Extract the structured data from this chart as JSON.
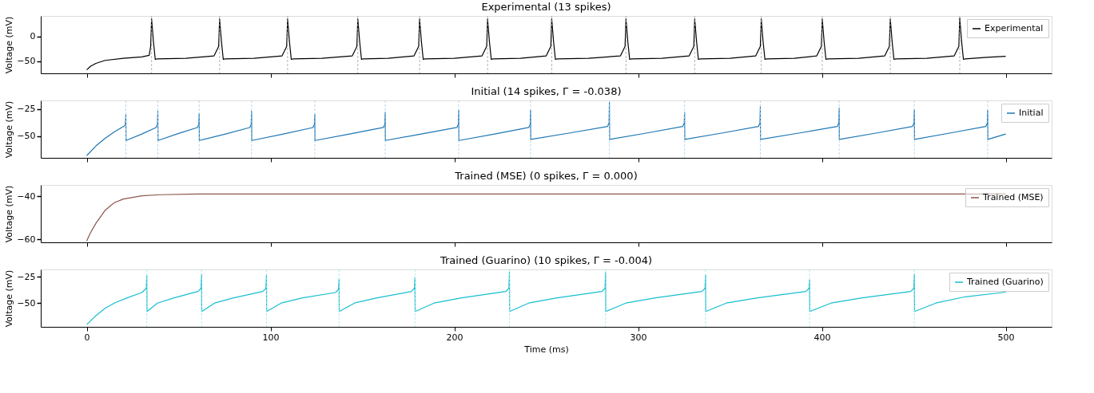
{
  "chart_data": [
    {
      "type": "line",
      "title": "Experimental (13 spikes)",
      "ylabel": "Voltage (mV)",
      "xlim": [
        -25,
        525
      ],
      "xticks": [
        0,
        100,
        200,
        300,
        400,
        500
      ],
      "ylim": [
        -74,
        41
      ],
      "yticks": [
        0,
        -50
      ],
      "tick_labels": "y",
      "legend": "top right",
      "grid": false,
      "line_style": "solid",
      "marker": "none",
      "series": [
        {
          "name": "Experimental",
          "color": "#000000",
          "x": [
            0,
            2,
            5,
            10,
            20,
            30,
            34,
            34.8,
            35.3,
            36.3,
            37.3,
            38.3,
            54,
            69.3,
            71.8,
            72.3,
            73.3,
            74.3,
            75.3,
            91,
            106.3,
            108.8,
            109.3,
            110.3,
            111.3,
            112.3,
            128,
            144.5,
            147,
            147.5,
            148.5,
            149.5,
            150.5,
            164,
            178.1,
            180.6,
            181.1,
            182.1,
            183.1,
            184.1,
            200,
            215.1,
            217.6,
            218.1,
            219.1,
            220.1,
            221.1,
            236,
            250,
            252.5,
            253,
            254,
            255,
            256,
            273,
            290.4,
            292.9,
            293.4,
            294.4,
            295.4,
            296.4,
            313,
            327.8,
            330.3,
            330.8,
            331.8,
            332.8,
            333.8,
            350,
            364,
            366.5,
            367,
            368,
            369,
            370,
            385,
            397.2,
            399.7,
            400.2,
            401.2,
            402.2,
            403.2,
            420,
            434.2,
            436.7,
            437.2,
            438.2,
            439.2,
            440.2,
            457,
            472,
            474.5,
            475,
            476,
            477,
            478,
            490,
            500
          ],
          "values": [
            -67,
            -60,
            -54,
            -48,
            -44,
            -41,
            -38,
            -20,
            35,
            -10,
            -46,
            -45,
            -44,
            -39,
            -20,
            35,
            -10,
            -46,
            -45,
            -44,
            -39,
            -20,
            35,
            -10,
            -46,
            -45,
            -44,
            -39,
            -20,
            35,
            -10,
            -46,
            -45,
            -44,
            -39,
            -20,
            35,
            -10,
            -46,
            -45,
            -44,
            -39,
            -20,
            35,
            -10,
            -46,
            -45,
            -44,
            -39,
            -20,
            35,
            -10,
            -46,
            -45,
            -44,
            -39,
            -20,
            35,
            -10,
            -46,
            -45,
            -44,
            -39,
            -20,
            35,
            -10,
            -46,
            -45,
            -44,
            -39,
            -20,
            35,
            -10,
            -46,
            -45,
            -44,
            -39,
            -20,
            35,
            -10,
            -46,
            -45,
            -44,
            -39,
            -20,
            35,
            -10,
            -46,
            -45,
            -44,
            -39,
            -20,
            37,
            -10,
            -46,
            -45,
            -42,
            -40
          ]
        }
      ],
      "ref_lines": [
        {
          "axis": "x",
          "value": 35.3,
          "color": "#9e9e9e",
          "line_style": "dashed"
        },
        {
          "axis": "x",
          "value": 72.3,
          "color": "#9e9e9e",
          "line_style": "dashed"
        },
        {
          "axis": "x",
          "value": 109.3,
          "color": "#9e9e9e",
          "line_style": "dashed"
        },
        {
          "axis": "x",
          "value": 147.5,
          "color": "#9e9e9e",
          "line_style": "dashed"
        },
        {
          "axis": "x",
          "value": 181.1,
          "color": "#9e9e9e",
          "line_style": "dashed"
        },
        {
          "axis": "x",
          "value": 218.1,
          "color": "#9e9e9e",
          "line_style": "dashed"
        },
        {
          "axis": "x",
          "value": 253,
          "color": "#9e9e9e",
          "line_style": "dashed"
        },
        {
          "axis": "x",
          "value": 293.4,
          "color": "#9e9e9e",
          "line_style": "dashed"
        },
        {
          "axis": "x",
          "value": 330.8,
          "color": "#9e9e9e",
          "line_style": "dashed"
        },
        {
          "axis": "x",
          "value": 367,
          "color": "#9e9e9e",
          "line_style": "dashed"
        },
        {
          "axis": "x",
          "value": 400.2,
          "color": "#9e9e9e",
          "line_style": "dashed"
        },
        {
          "axis": "x",
          "value": 437.2,
          "color": "#9e9e9e",
          "line_style": "dashed"
        },
        {
          "axis": "x",
          "value": 475,
          "color": "#9e9e9e",
          "line_style": "dashed"
        }
      ]
    },
    {
      "type": "line",
      "title": "Initial (14 spikes, Γ = -0.038)",
      "ylabel": "Voltage (mV)",
      "xlim": [
        -25,
        525
      ],
      "xticks": [
        0,
        100,
        200,
        300,
        400,
        500
      ],
      "ylim": [
        -70,
        -17
      ],
      "yticks": [
        -25,
        -50
      ],
      "tick_labels": "y",
      "legend": "top right",
      "grid": false,
      "line_style": "solid",
      "marker": "none",
      "series": [
        {
          "name": "Initial",
          "color": "#1f77b4",
          "x": [
            0,
            5,
            10,
            15,
            19,
            21,
            21.3,
            21.4,
            30,
            37.7,
            38.5,
            38.7,
            38.8,
            50,
            60.2,
            61,
            61.2,
            61.3,
            75.5,
            88.7,
            89.5,
            89.7,
            89.8,
            107,
            123.1,
            123.9,
            124.1,
            124.2,
            143,
            161.4,
            162.2,
            162.4,
            162.5,
            182,
            201.4,
            202.2,
            202.4,
            202.5,
            222,
            240.5,
            241.3,
            241.5,
            241.6,
            263,
            283.4,
            284.2,
            284.4,
            284.5,
            305,
            324.3,
            325.1,
            325.3,
            325.4,
            346,
            365.5,
            366.3,
            366.5,
            366.6,
            388,
            408.4,
            409.2,
            409.4,
            409.5,
            430,
            449.3,
            450.1,
            450.3,
            450.4,
            470,
            489.2,
            490,
            490.2,
            490.3,
            500
          ],
          "values": [
            -68,
            -59,
            -52,
            -46,
            -42,
            -40,
            -30,
            -54,
            -48,
            -42,
            -39,
            -27,
            -54,
            -47.5,
            -42,
            -39,
            -29,
            -54,
            -48,
            -42,
            -39,
            -27,
            -54,
            -48,
            -42,
            -39,
            -30,
            -54,
            -48,
            -42,
            -39,
            -28,
            -54,
            -48,
            -42,
            -39,
            -26,
            -54,
            -48,
            -42,
            -39,
            -26,
            -53,
            -47,
            -41,
            -38,
            -18.5,
            -53,
            -47,
            -41,
            -38,
            -28,
            -53,
            -47,
            -41,
            -38,
            -23,
            -53,
            -47,
            -41,
            -38,
            -24,
            -53,
            -47,
            -41,
            -38,
            -25.5,
            -53,
            -47,
            -41,
            -38,
            -26,
            -53,
            -48
          ]
        }
      ],
      "ref_lines": [
        {
          "axis": "x",
          "value": 21.3,
          "color": "#a9cbe6",
          "line_style": "dashed"
        },
        {
          "axis": "x",
          "value": 38.7,
          "color": "#a9cbe6",
          "line_style": "dashed"
        },
        {
          "axis": "x",
          "value": 61.2,
          "color": "#a9cbe6",
          "line_style": "dashed"
        },
        {
          "axis": "x",
          "value": 89.7,
          "color": "#a9cbe6",
          "line_style": "dashed"
        },
        {
          "axis": "x",
          "value": 124.1,
          "color": "#a9cbe6",
          "line_style": "dashed"
        },
        {
          "axis": "x",
          "value": 162.4,
          "color": "#a9cbe6",
          "line_style": "dashed"
        },
        {
          "axis": "x",
          "value": 202.4,
          "color": "#a9cbe6",
          "line_style": "dashed"
        },
        {
          "axis": "x",
          "value": 241.5,
          "color": "#a9cbe6",
          "line_style": "dashed"
        },
        {
          "axis": "x",
          "value": 284.4,
          "color": "#a9cbe6",
          "line_style": "dashed"
        },
        {
          "axis": "x",
          "value": 325.3,
          "color": "#a9cbe6",
          "line_style": "dashed"
        },
        {
          "axis": "x",
          "value": 366.5,
          "color": "#a9cbe6",
          "line_style": "dashed"
        },
        {
          "axis": "x",
          "value": 409.4,
          "color": "#a9cbe6",
          "line_style": "dashed"
        },
        {
          "axis": "x",
          "value": 450.3,
          "color": "#a9cbe6",
          "line_style": "dashed"
        },
        {
          "axis": "x",
          "value": 490.2,
          "color": "#a9cbe6",
          "line_style": "dashed"
        }
      ]
    },
    {
      "type": "line",
      "title": "Trained (MSE) (0 spikes, Γ = 0.000)",
      "ylabel": "Voltage (mV)",
      "xlim": [
        -25,
        525
      ],
      "xticks": [
        0,
        100,
        200,
        300,
        400,
        500
      ],
      "ylim": [
        -61.3,
        -34.8
      ],
      "yticks": [
        -40,
        -60
      ],
      "tick_labels": "y",
      "legend": "top right",
      "grid": false,
      "line_style": "solid",
      "marker": "none",
      "series": [
        {
          "name": "Trained (MSE)",
          "color": "#8c564b",
          "x": [
            0,
            2,
            5,
            10,
            15,
            20,
            30,
            40,
            60,
            100,
            500
          ],
          "values": [
            -60.7,
            -57,
            -52.5,
            -46.5,
            -43,
            -41.3,
            -39.8,
            -39.3,
            -39,
            -39,
            -39
          ]
        }
      ]
    },
    {
      "type": "line",
      "title": "Trained (Guarino) (10 spikes, Γ = -0.004)",
      "ylabel": "Voltage (mV)",
      "xlabel": "Time (ms)",
      "xlim": [
        -25,
        525
      ],
      "xticks": [
        0,
        100,
        200,
        300,
        400,
        500
      ],
      "ylim": [
        -72.6,
        -18
      ],
      "yticks": [
        -25,
        -50
      ],
      "legend": "top right",
      "grid": false,
      "line_style": "solid",
      "marker": "none",
      "series": [
        {
          "name": "Trained (Guarino)",
          "color": "#17becf",
          "x": [
            0,
            5,
            10,
            15,
            22,
            30,
            32.4,
            32.7,
            32.8,
            38.5,
            47.6,
            60.5,
            62.2,
            62.5,
            62.6,
            69.6,
            80,
            95.8,
            97.5,
            97.8,
            97.9,
            105.8,
            117.5,
            135.3,
            137,
            137.3,
            137.4,
            145.7,
            158,
            176.6,
            178.3,
            178.6,
            178.7,
            189,
            204,
            228,
            229.7,
            230,
            230.1,
            240.5,
            256,
            280.3,
            282,
            282.3,
            282.4,
            293.3,
            309.5,
            334.7,
            336.4,
            336.7,
            336.8,
            348,
            365,
            391.3,
            393,
            393.3,
            393.4,
            405,
            422,
            448.3,
            450,
            450.3,
            450.4,
            462,
            478,
            500
          ],
          "values": [
            -70.4,
            -62,
            -55,
            -50,
            -45,
            -40,
            -36,
            -24,
            -58,
            -50,
            -45,
            -39,
            -36,
            -22.7,
            -58,
            -50,
            -45,
            -39,
            -36,
            -23.3,
            -58,
            -50,
            -45,
            -40,
            -37,
            -27.3,
            -58,
            -50,
            -45,
            -39,
            -36,
            -25.6,
            -58,
            -50,
            -45,
            -39,
            -36,
            -20.7,
            -58,
            -50,
            -45,
            -39,
            -36,
            -21,
            -58,
            -50,
            -45,
            -39,
            -36,
            -23.5,
            -58,
            -50,
            -45,
            -39,
            -36,
            -28,
            -58,
            -50,
            -45,
            -39,
            -36,
            -22.5,
            -58,
            -50,
            -44,
            -39.6
          ]
        }
      ],
      "ref_lines": [
        {
          "axis": "x",
          "value": 32.7,
          "color": "#9fe3ea",
          "line_style": "dashed"
        },
        {
          "axis": "x",
          "value": 62.5,
          "color": "#9fe3ea",
          "line_style": "dashed"
        },
        {
          "axis": "x",
          "value": 97.8,
          "color": "#9fe3ea",
          "line_style": "dashed"
        },
        {
          "axis": "x",
          "value": 137.3,
          "color": "#9fe3ea",
          "line_style": "dashed"
        },
        {
          "axis": "x",
          "value": 178.6,
          "color": "#9fe3ea",
          "line_style": "dashed"
        },
        {
          "axis": "x",
          "value": 230,
          "color": "#9fe3ea",
          "line_style": "dashed"
        },
        {
          "axis": "x",
          "value": 282.3,
          "color": "#9fe3ea",
          "line_style": "dashed"
        },
        {
          "axis": "x",
          "value": 336.7,
          "color": "#9fe3ea",
          "line_style": "dashed"
        },
        {
          "axis": "x",
          "value": 393.3,
          "color": "#9fe3ea",
          "line_style": "dashed"
        },
        {
          "axis": "x",
          "value": 450.3,
          "color": "#9fe3ea",
          "line_style": "dashed"
        }
      ]
    }
  ]
}
